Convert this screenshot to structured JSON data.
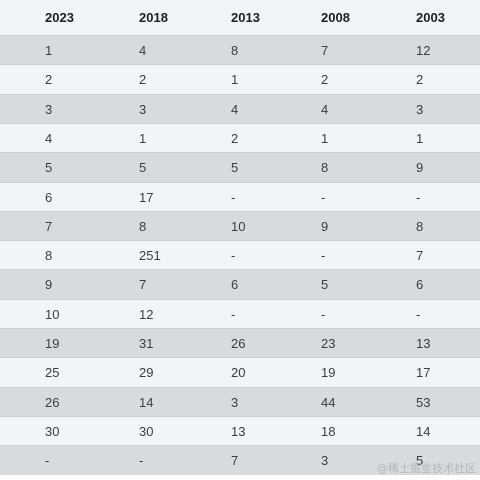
{
  "table": {
    "headers": [
      "2023",
      "2018",
      "2013",
      "2008",
      "2003"
    ],
    "rows": [
      [
        "1",
        "4",
        "8",
        "7",
        "12"
      ],
      [
        "2",
        "2",
        "1",
        "2",
        "2"
      ],
      [
        "3",
        "3",
        "4",
        "4",
        "3"
      ],
      [
        "4",
        "1",
        "2",
        "1",
        "1"
      ],
      [
        "5",
        "5",
        "5",
        "8",
        "9"
      ],
      [
        "6",
        "17",
        "-",
        "-",
        "-"
      ],
      [
        "7",
        "8",
        "10",
        "9",
        "8"
      ],
      [
        "8",
        "251",
        "-",
        "-",
        "7"
      ],
      [
        "9",
        "7",
        "6",
        "5",
        "6"
      ],
      [
        "10",
        "12",
        "-",
        "-",
        "-"
      ],
      [
        "19",
        "31",
        "26",
        "23",
        "13"
      ],
      [
        "25",
        "29",
        "20",
        "19",
        "17"
      ],
      [
        "26",
        "14",
        "3",
        "44",
        "53"
      ],
      [
        "30",
        "30",
        "13",
        "18",
        "14"
      ],
      [
        "-",
        "-",
        "7",
        "3",
        "5"
      ]
    ]
  },
  "watermark": "@稀土掘金技术社区",
  "colors": {
    "header_bg": "#f1f4f8",
    "row_dark": "#d8dbde",
    "row_light": "#f1f4f8",
    "border": "#c9cfd6"
  }
}
